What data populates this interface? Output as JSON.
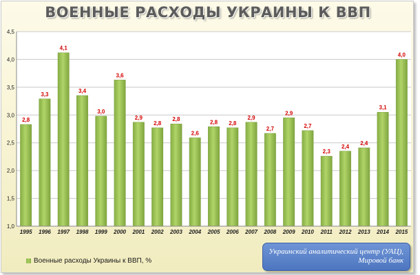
{
  "chart_data": {
    "type": "bar",
    "title": "ВОЕННЫЕ РАСХОДЫ УКРАИНЫ К ВВП",
    "categories": [
      "1995",
      "1996",
      "1997",
      "1998",
      "1999",
      "2000",
      "2001",
      "2002",
      "2003",
      "2004",
      "2005",
      "2006",
      "2007",
      "2008",
      "2009",
      "2010",
      "2011",
      "2012",
      "2013",
      "2014",
      "2015"
    ],
    "series": [
      {
        "name": "Военные расходы Украины к ВВП, %",
        "values": [
          2.83,
          3.29,
          4.12,
          3.35,
          2.98,
          3.63,
          2.87,
          2.77,
          2.84,
          2.59,
          2.79,
          2.77,
          2.87,
          2.67,
          2.95,
          2.72,
          2.26,
          2.35,
          2.41,
          3.05,
          4.0
        ],
        "labels": [
          "2,8",
          "3,3",
          "4,1",
          "3,4",
          "3,0",
          "3,6",
          "2,9",
          "2,8",
          "2,8",
          "2,6",
          "2,8",
          "2,8",
          "2,9",
          "2,7",
          "2,9",
          "2,7",
          "2,3",
          "2,4",
          "2,4",
          "3,1",
          "4,0"
        ]
      }
    ],
    "ylim": [
      1.0,
      4.5
    ],
    "yticks": [
      "1,0",
      "1,5",
      "2,0",
      "2,5",
      "3,0",
      "3,5",
      "4,0",
      "4,5"
    ],
    "grid": true,
    "legend_position": "bottom-left",
    "colors": {
      "bar": "#9bc257",
      "data_label": "#d40000",
      "grid": "#c8c8c8",
      "axis_text": "#1a1a1a"
    }
  },
  "source": {
    "line1": "Украинский аналитический центр (УАЦ),",
    "line2": "Мировой банк"
  }
}
